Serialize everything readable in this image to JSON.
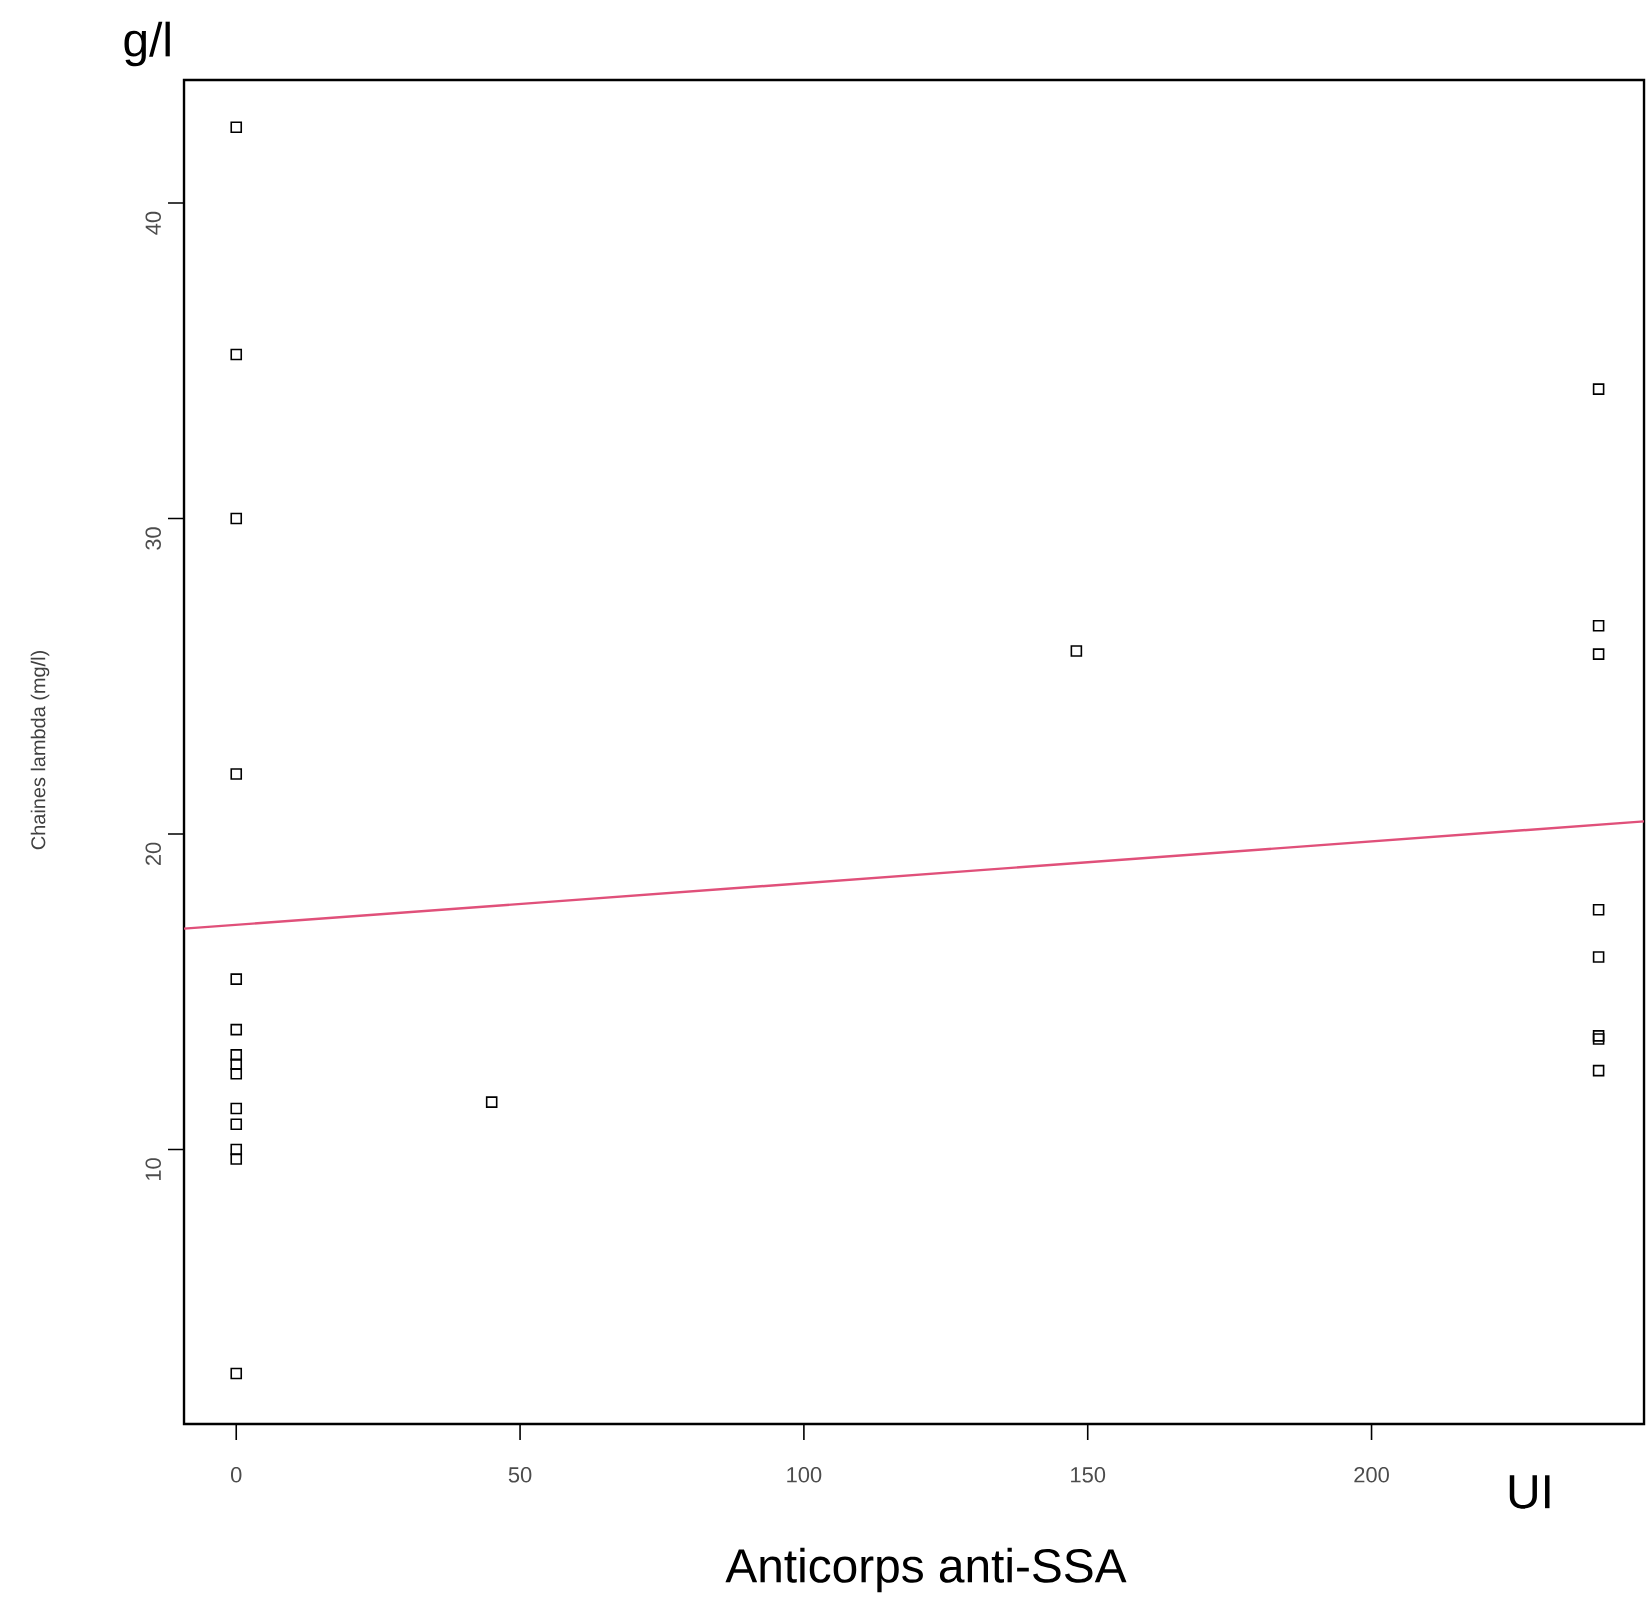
{
  "chart_data": {
    "type": "scatter",
    "xlabel": "Anticorps anti-SSA",
    "ylabel": "Chaines lambda (mg/l)",
    "annotations": [
      "g/l",
      "UI"
    ],
    "xlim": [
      -9.2,
      248
    ],
    "ylim": [
      1.3,
      43.9
    ],
    "xticks": [
      0,
      50,
      100,
      150,
      200
    ],
    "yticks": [
      10,
      20,
      30,
      40
    ],
    "marker": "square",
    "series": [
      {
        "color": "#000000",
        "x": [
          0,
          0,
          0,
          0,
          0,
          0,
          0,
          0,
          0,
          0,
          0,
          0,
          0,
          0,
          45,
          148,
          240,
          240,
          240,
          240,
          240,
          240,
          240,
          240
        ],
        "values": [
          42.4,
          35.2,
          30.0,
          21.9,
          15.4,
          13.8,
          13.0,
          12.7,
          12.4,
          11.3,
          10.8,
          10.0,
          9.7,
          2.9,
          11.5,
          25.8,
          34.1,
          26.6,
          25.7,
          17.6,
          16.1,
          13.6,
          13.5,
          12.5
        ]
      },
      {
        "type": "line",
        "color": "#e0507a",
        "marker": "none",
        "x": [
          -9.2,
          248
        ],
        "values": [
          17.0,
          20.4
        ]
      }
    ]
  }
}
